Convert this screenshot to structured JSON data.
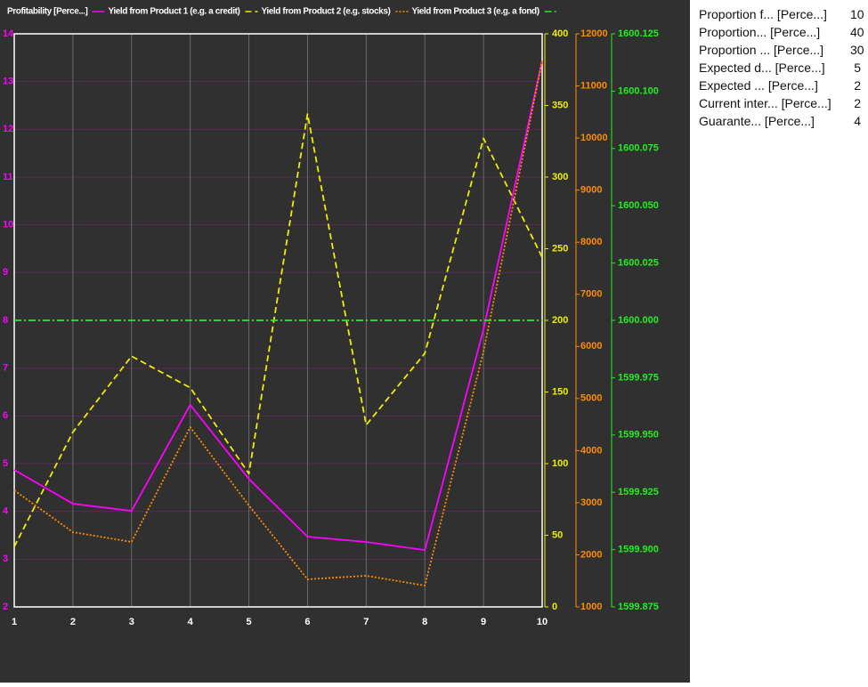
{
  "chart_data": {
    "type": "line",
    "ylabel": "Profitability [Perce...]",
    "x": [
      1,
      2,
      3,
      4,
      5,
      6,
      7,
      8,
      9,
      10
    ],
    "xlim": [
      1,
      10
    ],
    "xticks": [
      1,
      2,
      3,
      4,
      5,
      6,
      7,
      8,
      9,
      10
    ],
    "ylim": [
      2,
      14
    ],
    "yticks": [
      2,
      3,
      4,
      5,
      6,
      7,
      8,
      9,
      10,
      11,
      12,
      13,
      14
    ],
    "y2lim": [
      0,
      400
    ],
    "y2ticks": [
      0,
      50,
      100,
      150,
      200,
      250,
      300,
      350,
      400
    ],
    "y3lim": [
      1000,
      12000
    ],
    "y3ticks": [
      1000,
      2000,
      3000,
      4000,
      5000,
      6000,
      7000,
      8000,
      9000,
      10000,
      11000,
      12000
    ],
    "y4lim": [
      1599.875,
      1600.125
    ],
    "y4ticks": [
      1599.875,
      {
        "value": 1599.9,
        "label": "1599.900"
      },
      1599.925,
      {
        "value": 1599.95,
        "label": "1599.950"
      },
      1599.975,
      {
        "value": 1600,
        "label": "1600.000"
      },
      1600.025,
      {
        "value": 1600.05,
        "label": "1600.050"
      },
      1600.075,
      {
        "value": 1600.1,
        "label": "1600.100"
      },
      1600.125
    ],
    "grid": true,
    "series": [
      {
        "name": "Yield from Product 1 (e.g. a credit)",
        "color": "#ff00ff",
        "linestyle": "solid",
        "axis": "y",
        "values": [
          4.87,
          4.16,
          4.01,
          6.23,
          4.68,
          3.47,
          3.36,
          3.19,
          7.81,
          13.44
        ]
      },
      {
        "name": "Yield from Product 2 (e.g. stocks)",
        "color": "#eeee00",
        "linestyle": "dashed",
        "axis": "y2",
        "values": [
          42,
          122,
          175,
          153,
          93,
          344,
          127,
          177,
          327,
          244
        ]
      },
      {
        "name": "Yield from Product 3 (e.g. a fond)",
        "color": "#ff8c00",
        "linestyle": "dotted",
        "axis": "y3",
        "values": [
          3237,
          2435,
          2247,
          4450,
          2947,
          1530,
          1598,
          1410,
          5900,
          11487
        ]
      },
      {
        "color": "#22ee22",
        "linestyle": "dashdot",
        "axis": "y4",
        "values": [
          1600,
          1600,
          1600,
          1600,
          1600,
          1600,
          1600,
          1600,
          1600,
          1600
        ]
      }
    ]
  },
  "table": {
    "rows": [
      [
        "Proportion f... [Perce...]",
        10
      ],
      [
        "Proportion... [Perce...]",
        40
      ],
      [
        "Proportion ... [Perce...]",
        30
      ],
      [
        "Expected d... [Perce...]",
        5
      ],
      [
        "Expected ... [Perce...]",
        2
      ],
      [
        "Current inter... [Perce...]",
        2
      ],
      [
        "Guarante... [Perce...]",
        4
      ]
    ]
  }
}
